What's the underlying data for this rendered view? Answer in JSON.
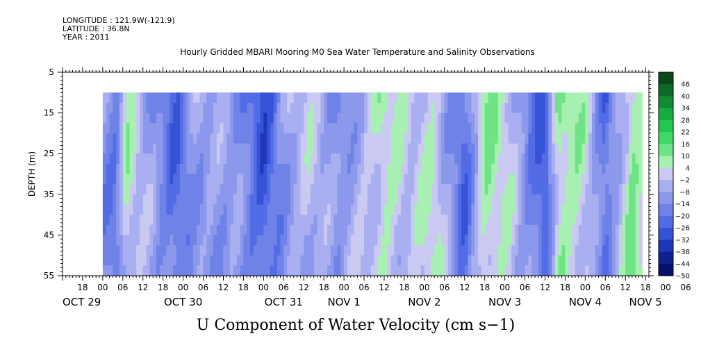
{
  "header": {
    "longitude": "LONGITUDE : 121.9W(-121.9)",
    "latitude": "LATITUDE : 36.8N",
    "year": "YEAR : 2011"
  },
  "chart_data": {
    "type": "heatmap",
    "title": "Hourly Gridded MBARI Mooring M0 Sea Water Temperature and Salinity Observations",
    "xlabel": "U Component of Water Velocity (cm s−1)",
    "ylabel": "DEPTH (m)",
    "ylim": [
      55,
      5
    ],
    "y_ticks": [
      "5",
      "15",
      "25",
      "35",
      "45",
      "55"
    ],
    "x_hour_ticks": [
      "18",
      "00",
      "06",
      "12",
      "18",
      "00",
      "06",
      "12",
      "18",
      "00",
      "06",
      "12",
      "18",
      "00",
      "06",
      "12",
      "18",
      "00",
      "06",
      "12",
      "18",
      "00",
      "06",
      "12",
      "18",
      "00",
      "06",
      "12",
      "18",
      "00",
      "06",
      "12",
      "18",
      "00",
      "06",
      "12"
    ],
    "x_date_labels": [
      "OCT 29",
      "OCT 30",
      "OCT 31",
      "NOV  1",
      "NOV  2",
      "NOV  3",
      "NOV  4",
      "NOV  5"
    ],
    "x_range_hours": [
      -12,
      163
    ],
    "data_start_hour": 0,
    "data_end_hour": 161,
    "data_depth_range": [
      10,
      55
    ],
    "colorbar": {
      "levels": [
        "46",
        "40",
        "34",
        "28",
        "22",
        "16",
        "10",
        "4",
        "−2",
        "−8",
        "−14",
        "−20",
        "−26",
        "−32",
        "−38",
        "−44",
        "−50"
      ],
      "colors": [
        "#0a4a1a",
        "#0b6a25",
        "#0e8c33",
        "#14ad42",
        "#24c652",
        "#3fd867",
        "#6ee487",
        "#a7f0b2",
        "#c9c9f2",
        "#a9aff0",
        "#8c98ec",
        "#6e82e8",
        "#516ce4",
        "#3653d8",
        "#2036b8",
        "#102090",
        "#05106a"
      ]
    },
    "u_velocity_bands": [
      {
        "hour": 0,
        "value": -12
      },
      {
        "hour": 4,
        "value": -18
      },
      {
        "hour": 7,
        "value": 4
      },
      {
        "hour": 12,
        "value": -6
      },
      {
        "hour": 22,
        "value": -22
      },
      {
        "hour": 28,
        "value": -8
      },
      {
        "hour": 40,
        "value": -12
      },
      {
        "hour": 48,
        "value": -26
      },
      {
        "hour": 56,
        "value": -6
      },
      {
        "hour": 62,
        "value": -2
      },
      {
        "hour": 70,
        "value": -14
      },
      {
        "hour": 75,
        "value": -6
      },
      {
        "hour": 84,
        "value": 6
      },
      {
        "hour": 92,
        "value": -4
      },
      {
        "hour": 99,
        "value": 4
      },
      {
        "hour": 108,
        "value": -22
      },
      {
        "hour": 114,
        "value": 8
      },
      {
        "hour": 120,
        "value": 2
      },
      {
        "hour": 132,
        "value": -26
      },
      {
        "hour": 136,
        "value": 10
      },
      {
        "hour": 144,
        "value": 2
      },
      {
        "hour": 150,
        "value": -24
      },
      {
        "hour": 158,
        "value": 12
      },
      {
        "hour": 161,
        "value": 6
      }
    ]
  }
}
